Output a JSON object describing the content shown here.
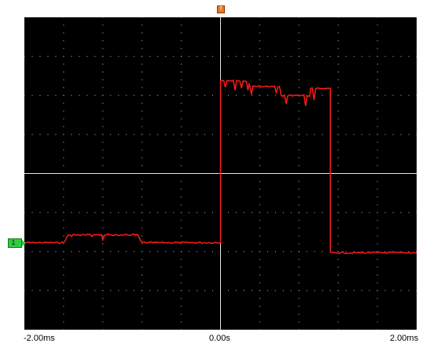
{
  "scope": {
    "timebase_labels": {
      "left": "-2.00ms",
      "center": "0.00s",
      "right": "2.00ms"
    },
    "channel_marker": "1",
    "trigger_marker": "T",
    "colors": {
      "screen_background": "#000000",
      "grid": "#bfbfbf",
      "trace": "#ff1a1a",
      "channel_marker": "#2ecc40",
      "trigger_marker": "#e87722"
    }
  },
  "chart_data": {
    "type": "line",
    "x": [
      -2.0,
      -1.6,
      -1.55,
      -0.85,
      -0.8,
      0.0,
      0.0,
      0.28,
      0.3,
      0.6,
      0.62,
      0.9,
      0.92,
      1.1,
      1.12,
      1.12,
      2.0
    ],
    "series": [
      {
        "values": [
          0.0,
          0.0,
          0.35,
          0.35,
          0.0,
          0.0,
          7.3,
          7.2,
          7.0,
          7.0,
          6.6,
          6.6,
          6.9,
          6.9,
          6.9,
          -0.45,
          -0.45
        ]
      }
    ],
    "xlim": [
      -2.0,
      2.0
    ],
    "ylim": [
      -3.9,
      10.1
    ],
    "grid": true
  }
}
